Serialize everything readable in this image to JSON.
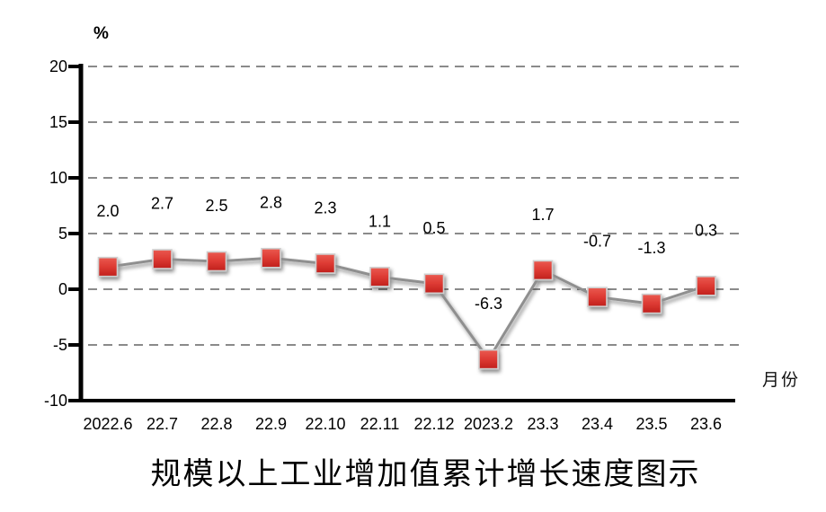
{
  "chart_data": {
    "type": "line",
    "title": "规模以上工业增加值累计增长速度图示",
    "unit_label": "%",
    "x_axis_label": "月份",
    "categories": [
      "2022.6",
      "22.7",
      "22.8",
      "22.9",
      "22.10",
      "22.11",
      "22.12",
      "2023.2",
      "23.3",
      "23.4",
      "23.5",
      "23.6"
    ],
    "values": [
      2.0,
      2.7,
      2.5,
      2.8,
      2.3,
      1.1,
      0.5,
      -6.3,
      1.7,
      -0.7,
      -1.3,
      0.3
    ],
    "point_labels": [
      "2.0",
      "2.7",
      "2.5",
      "2.8",
      "2.3",
      "1.1",
      "0.5",
      "-6.3",
      "1.7",
      "-0.7",
      "-1.3",
      "0.3"
    ],
    "y_ticks": [
      20,
      15,
      10,
      5,
      0,
      -5,
      -10
    ],
    "y_tick_labels": [
      "20",
      "15",
      "10",
      "5",
      "0",
      "-5",
      "-10"
    ],
    "ylim": [
      -10,
      20
    ],
    "grid": "horizontal-dashed",
    "legend": "none",
    "colors": {
      "marker_top": "#ea5a50",
      "marker_mid": "#dd3a33",
      "marker_bottom": "#c0201c",
      "marker_border": "#cfcfcf",
      "line": "#8f8f8f",
      "grid": "#8a8a8a",
      "axis": "#000000",
      "text": "#000000"
    }
  }
}
